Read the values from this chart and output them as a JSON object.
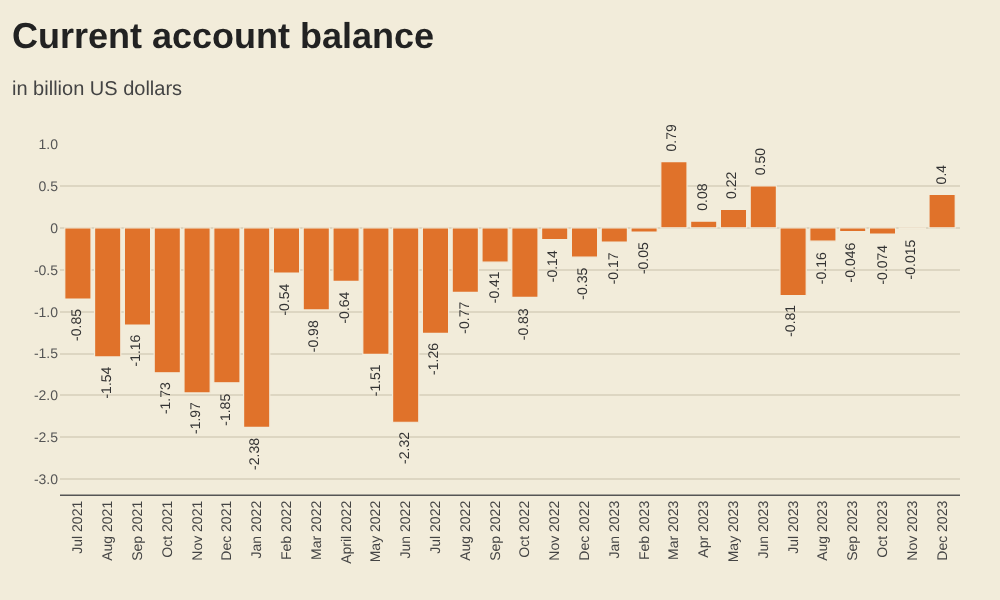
{
  "chart_data": {
    "type": "bar",
    "title": "Current account balance",
    "subtitle": "in billion US dollars",
    "categories": [
      "Jul 2021",
      "Aug 2021",
      "Sep 2021",
      "Oct 2021",
      "Nov 2021",
      "Dec 2021",
      "Jan 2022",
      "Feb 2022",
      "Mar 2022",
      "April 2022",
      "May 2022",
      "Jun 2022",
      "Jul 2022",
      "Aug 2022",
      "Sep 2022",
      "Oct 2022",
      "Nov 2022",
      "Dec 2022",
      "Jan 2023",
      "Feb 2023",
      "Mar 2023",
      "Apr 2023",
      "May 2023",
      "Jun 2023",
      "Jul 2023",
      "Aug 2023",
      "Sep 2023",
      "Oct 2023",
      "Nov 2023",
      "Dec 2023"
    ],
    "values": [
      -0.85,
      -1.54,
      -1.16,
      -1.73,
      -1.97,
      -1.85,
      -2.38,
      -0.54,
      -0.98,
      -0.64,
      -1.51,
      -2.32,
      -1.26,
      -0.77,
      -0.41,
      -0.83,
      -0.14,
      -0.35,
      -0.17,
      -0.05,
      0.79,
      0.08,
      0.22,
      0.5,
      -0.81,
      -0.16,
      -0.046,
      -0.074,
      -0.015,
      0.4
    ],
    "value_labels": [
      "-0.85",
      "-1.54",
      "-1.16",
      "-1.73",
      "-1.97",
      "-1.85",
      "-2.38",
      "-0.54",
      "-0.98",
      "-0.64",
      "-1.51",
      "-2.32",
      "-1.26",
      "-0.77",
      "-0.41",
      "-0.83",
      "-0.14",
      "-0.35",
      "-0.17",
      "-0.05",
      "0.79",
      "0.08",
      "0.22",
      "0.50",
      "-0.81",
      "-0.16",
      "-0.046",
      "-0.074",
      "-0.015",
      "0.4"
    ],
    "color": "#e0722a",
    "ylim": [
      -3.2,
      1.0
    ],
    "yticks": [
      {
        "value": 1,
        "label": "1.0"
      },
      0.5,
      0,
      -0.5,
      {
        "value": -1,
        "label": "-1.0"
      },
      -1.5,
      {
        "value": -2,
        "label": "-2.0"
      },
      -2.5,
      {
        "value": -3,
        "label": "-3.0"
      }
    ],
    "grid": "y"
  }
}
